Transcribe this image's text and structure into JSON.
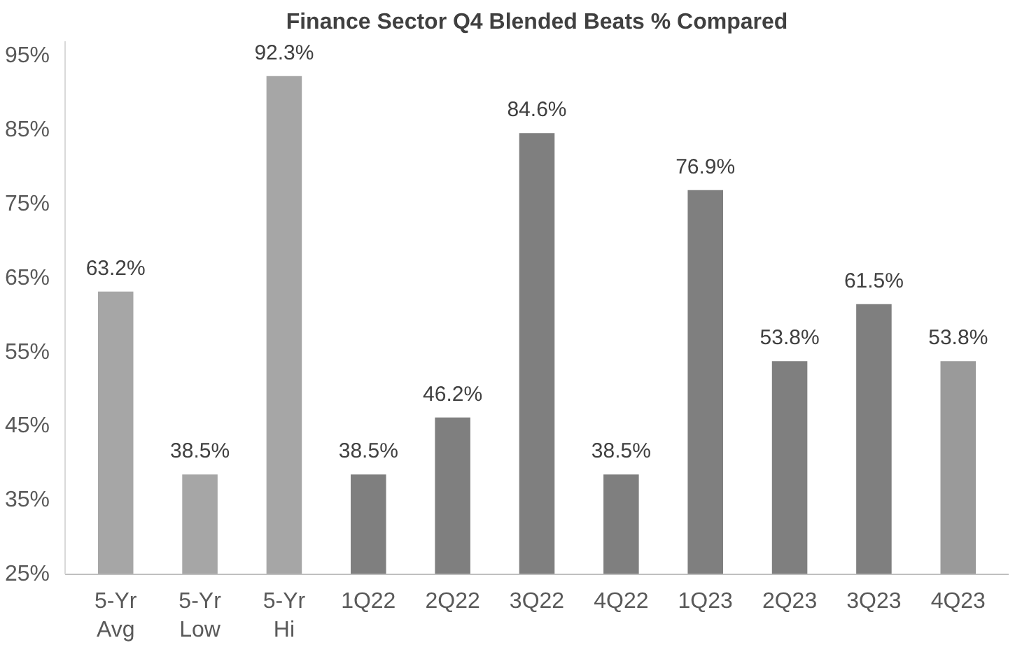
{
  "chart_data": {
    "type": "bar",
    "title": "Finance Sector Q4 Blended Beats % Compared",
    "categories": [
      "5-Yr\nAvg",
      "5-Yr\nLow",
      "5-Yr\nHi",
      "1Q22",
      "2Q22",
      "3Q22",
      "4Q22",
      "1Q23",
      "2Q23",
      "3Q23",
      "4Q23"
    ],
    "values": [
      63.2,
      38.5,
      92.3,
      38.5,
      46.2,
      84.6,
      38.5,
      76.9,
      53.8,
      61.5,
      53.8
    ],
    "colors": [
      "#a6a6a6",
      "#a6a6a6",
      "#a6a6a6",
      "#7f7f7f",
      "#7f7f7f",
      "#7f7f7f",
      "#7f7f7f",
      "#7f7f7f",
      "#7f7f7f",
      "#7f7f7f",
      "#9a9a9a"
    ],
    "ylim": [
      25,
      97
    ],
    "yticks": [
      {
        "value": 25,
        "label": "25%"
      },
      {
        "value": 35,
        "label": "35%"
      },
      {
        "value": 45,
        "label": "45%"
      },
      {
        "value": 55,
        "label": "55%"
      },
      {
        "value": 65,
        "label": "65%"
      },
      {
        "value": 75,
        "label": "75%"
      },
      {
        "value": 85,
        "label": "85%"
      },
      {
        "value": 95,
        "label": "95%"
      }
    ],
    "value_labels": [
      "63.2%",
      "38.5%",
      "92.3%",
      "38.5%",
      "46.2%",
      "84.6%",
      "38.5%",
      "76.9%",
      "53.8%",
      "61.5%",
      "53.8%"
    ],
    "grid": false
  }
}
